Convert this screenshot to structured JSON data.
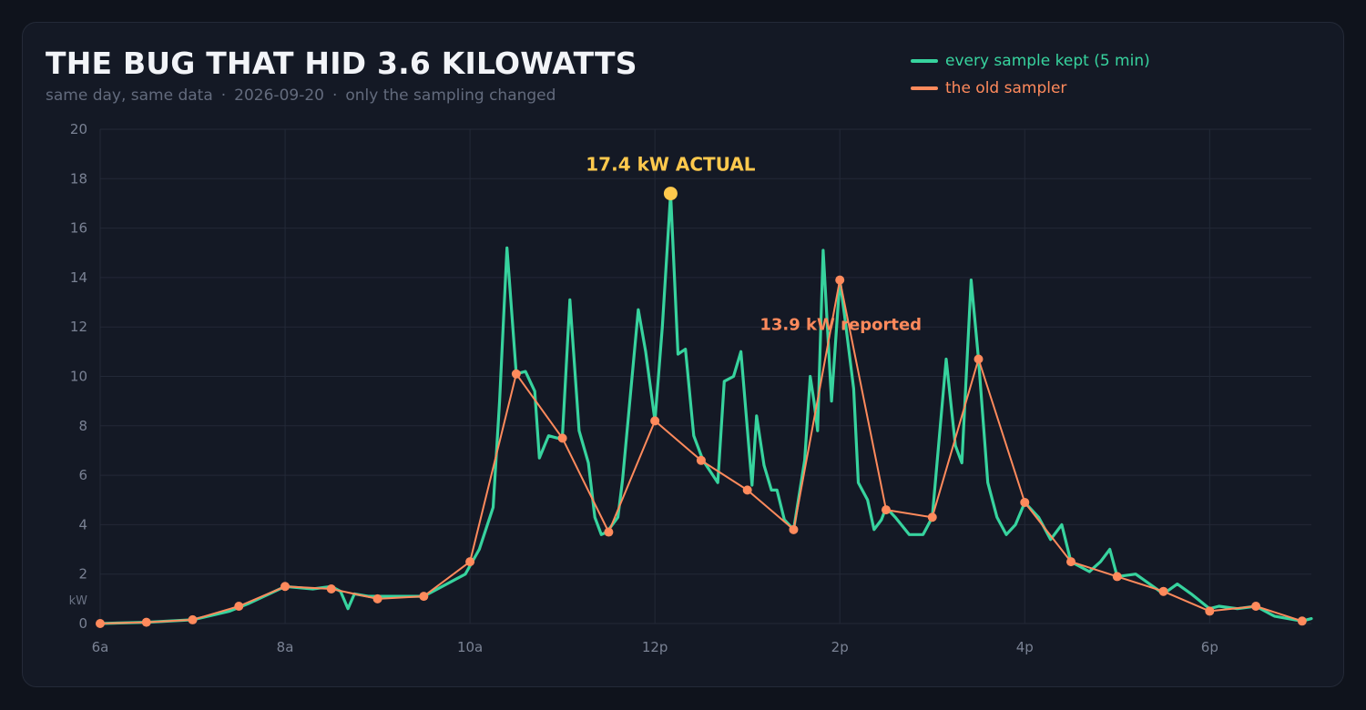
{
  "header": {
    "title": "THE BUG THAT HID 3.6 KILOWATTS",
    "subtitle_parts": [
      "same day, same data",
      "2026-09-20",
      "only the sampling changed"
    ],
    "subtitle_separator": "·"
  },
  "legend": {
    "items": [
      {
        "label": "every sample kept (5 min)",
        "color": "#37d39e"
      },
      {
        "label": "the old sampler",
        "color": "#ff8a5c"
      }
    ]
  },
  "colors": {
    "background": "#0f131c",
    "card": "#141925",
    "grid": "#232937",
    "actual": "#37d39e",
    "sampled": "#ff8a5c",
    "peak": "#ffc94d"
  },
  "chart_data": {
    "type": "line",
    "title": "THE BUG THAT HID 3.6 KILOWATTS",
    "ylabel": "kW",
    "xlabel": "",
    "xlim": [
      6,
      19.1
    ],
    "ylim": [
      0,
      20
    ],
    "x_ticks": [
      {
        "value": 6,
        "label": "6a"
      },
      {
        "value": 8,
        "label": "8a"
      },
      {
        "value": 10,
        "label": "10a"
      },
      {
        "value": 12,
        "label": "12p"
      },
      {
        "value": 14,
        "label": "2p"
      },
      {
        "value": 16,
        "label": "4p"
      },
      {
        "value": 18,
        "label": "6p"
      }
    ],
    "y_ticks": [
      0,
      2,
      4,
      6,
      8,
      10,
      12,
      14,
      16,
      18,
      20
    ],
    "grid": true,
    "legend_position": "top-right",
    "series": [
      {
        "name": "every sample kept (5 min)",
        "color": "#37d39e",
        "points": [
          [
            6.0,
            0.0
          ],
          [
            6.5,
            0.05
          ],
          [
            7.0,
            0.15
          ],
          [
            7.4,
            0.5
          ],
          [
            7.6,
            0.8
          ],
          [
            8.0,
            1.5
          ],
          [
            8.3,
            1.4
          ],
          [
            8.5,
            1.5
          ],
          [
            8.6,
            1.3
          ],
          [
            8.68,
            0.6
          ],
          [
            8.75,
            1.2
          ],
          [
            8.9,
            1.1
          ],
          [
            9.0,
            1.1
          ],
          [
            9.5,
            1.1
          ],
          [
            9.8,
            1.7
          ],
          [
            9.95,
            2.0
          ],
          [
            10.1,
            3.0
          ],
          [
            10.25,
            4.7
          ],
          [
            10.32,
            9.0
          ],
          [
            10.4,
            15.2
          ],
          [
            10.5,
            10.1
          ],
          [
            10.6,
            10.2
          ],
          [
            10.7,
            9.4
          ],
          [
            10.75,
            6.7
          ],
          [
            10.85,
            7.6
          ],
          [
            10.95,
            7.5
          ],
          [
            11.0,
            7.6
          ],
          [
            11.08,
            13.1
          ],
          [
            11.18,
            7.8
          ],
          [
            11.28,
            6.5
          ],
          [
            11.35,
            4.3
          ],
          [
            11.42,
            3.6
          ],
          [
            11.48,
            3.7
          ],
          [
            11.6,
            4.3
          ],
          [
            11.65,
            5.8
          ],
          [
            11.82,
            12.7
          ],
          [
            11.9,
            11.0
          ],
          [
            12.0,
            8.2
          ],
          [
            12.08,
            12.0
          ],
          [
            12.17,
            17.4
          ],
          [
            12.25,
            10.9
          ],
          [
            12.33,
            11.1
          ],
          [
            12.42,
            7.6
          ],
          [
            12.52,
            6.6
          ],
          [
            12.68,
            5.7
          ],
          [
            12.75,
            9.8
          ],
          [
            12.85,
            10.0
          ],
          [
            12.93,
            11.0
          ],
          [
            13.05,
            5.6
          ],
          [
            13.1,
            8.4
          ],
          [
            13.18,
            6.4
          ],
          [
            13.26,
            5.4
          ],
          [
            13.32,
            5.4
          ],
          [
            13.4,
            4.2
          ],
          [
            13.5,
            3.8
          ],
          [
            13.62,
            6.6
          ],
          [
            13.68,
            10.0
          ],
          [
            13.72,
            9.0
          ],
          [
            13.76,
            7.8
          ],
          [
            13.82,
            15.1
          ],
          [
            13.91,
            9.0
          ],
          [
            14.0,
            13.9
          ],
          [
            14.05,
            12.5
          ],
          [
            14.15,
            9.5
          ],
          [
            14.2,
            5.7
          ],
          [
            14.3,
            5.0
          ],
          [
            14.37,
            3.8
          ],
          [
            14.45,
            4.2
          ],
          [
            14.5,
            4.7
          ],
          [
            14.6,
            4.3
          ],
          [
            14.75,
            3.6
          ],
          [
            14.9,
            3.6
          ],
          [
            15.0,
            4.3
          ],
          [
            15.15,
            10.7
          ],
          [
            15.25,
            7.2
          ],
          [
            15.32,
            6.5
          ],
          [
            15.42,
            13.9
          ],
          [
            15.5,
            10.7
          ],
          [
            15.6,
            5.7
          ],
          [
            15.7,
            4.3
          ],
          [
            15.8,
            3.6
          ],
          [
            15.9,
            4.0
          ],
          [
            16.0,
            4.9
          ],
          [
            16.15,
            4.3
          ],
          [
            16.28,
            3.4
          ],
          [
            16.4,
            4.0
          ],
          [
            16.5,
            2.5
          ],
          [
            16.7,
            2.1
          ],
          [
            16.82,
            2.5
          ],
          [
            16.92,
            3.0
          ],
          [
            17.0,
            1.9
          ],
          [
            17.2,
            2.0
          ],
          [
            17.5,
            1.2
          ],
          [
            17.65,
            1.6
          ],
          [
            17.8,
            1.2
          ],
          [
            18.0,
            0.6
          ],
          [
            18.1,
            0.7
          ],
          [
            18.3,
            0.6
          ],
          [
            18.5,
            0.7
          ],
          [
            18.7,
            0.3
          ],
          [
            19.0,
            0.1
          ],
          [
            19.1,
            0.2
          ]
        ]
      },
      {
        "name": "the old sampler",
        "color": "#ff8a5c",
        "points": [
          [
            6.0,
            0.0
          ],
          [
            6.5,
            0.05
          ],
          [
            7.0,
            0.15
          ],
          [
            7.5,
            0.7
          ],
          [
            8.0,
            1.5
          ],
          [
            8.5,
            1.4
          ],
          [
            9.0,
            1.0
          ],
          [
            9.5,
            1.1
          ],
          [
            10.0,
            2.5
          ],
          [
            10.5,
            10.1
          ],
          [
            11.0,
            7.5
          ],
          [
            11.5,
            3.7
          ],
          [
            12.0,
            8.2
          ],
          [
            12.5,
            6.6
          ],
          [
            13.0,
            5.4
          ],
          [
            13.5,
            3.8
          ],
          [
            14.0,
            13.9
          ],
          [
            14.5,
            4.6
          ],
          [
            15.0,
            4.3
          ],
          [
            15.5,
            10.7
          ],
          [
            16.0,
            4.9
          ],
          [
            16.5,
            2.5
          ],
          [
            17.0,
            1.9
          ],
          [
            17.5,
            1.3
          ],
          [
            18.0,
            0.5
          ],
          [
            18.5,
            0.7
          ],
          [
            19.0,
            0.1
          ]
        ]
      }
    ],
    "annotations": [
      {
        "label": "17.4 kW  ACTUAL",
        "x": 12.17,
        "y": 17.4,
        "color": "#ffc94d",
        "marker": true
      },
      {
        "label": "13.9 kW  reported",
        "x": 14.0,
        "y": 13.9,
        "color": "#ff8a5c",
        "marker": false
      }
    ]
  }
}
